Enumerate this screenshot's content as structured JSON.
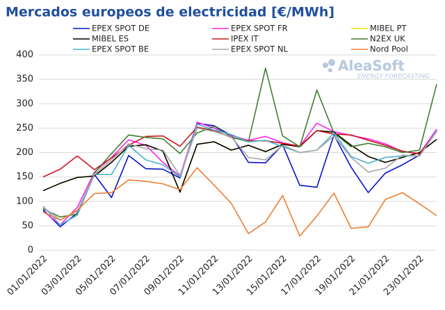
{
  "chart_data": {
    "type": "line",
    "title": "Mercados europeos de electricidad [€/MWh]",
    "watermark": {
      "brand": "AleaSoft",
      "tagline": "ENERGY FORECASTING"
    },
    "categories": [
      "01/01/2022",
      null,
      "03/01/2022",
      null,
      "05/01/2022",
      null,
      "07/01/2022",
      null,
      "09/01/2022",
      null,
      "11/01/2022",
      null,
      "13/01/2022",
      null,
      "15/01/2022",
      null,
      "17/01/2022",
      null,
      "19/01/2022",
      null,
      "21/01/2022",
      null,
      "23/01/2022",
      null
    ],
    "series": [
      {
        "name": "EPEX SPOT DE",
        "color": "#0a14c8",
        "values": [
          83,
          48,
          76,
          155,
          108,
          194,
          167,
          166,
          148,
          260,
          255,
          235,
          180,
          179,
          216,
          133,
          129,
          236,
          170,
          118,
          158,
          175,
          195,
          247
        ]
      },
      {
        "name": "EPEX SPOT FR",
        "color": "#ff22ee",
        "values": [
          80,
          52,
          88,
          160,
          190,
          226,
          215,
          180,
          152,
          262,
          250,
          235,
          225,
          233,
          220,
          213,
          260,
          243,
          235,
          228,
          218,
          202,
          198,
          248
        ]
      },
      {
        "name": "MIBEL PT",
        "color": "#f2e600",
        "values": [
          122,
          137,
          149,
          152,
          180,
          213,
          216,
          203,
          119,
          217,
          222,
          205,
          215,
          202,
          217,
          212,
          245,
          242,
          215,
          192,
          180,
          190,
          200,
          227
        ]
      },
      {
        "name": "MIBEL ES",
        "color": "#000000",
        "values": [
          122,
          137,
          149,
          152,
          180,
          213,
          216,
          203,
          119,
          217,
          222,
          205,
          215,
          202,
          217,
          212,
          245,
          242,
          215,
          192,
          180,
          190,
          200,
          227
        ]
      },
      {
        "name": "IPEX IT",
        "color": "#c8161e",
        "values": [
          150,
          166,
          193,
          165,
          189,
          215,
          233,
          234,
          213,
          252,
          245,
          231,
          224,
          224,
          219,
          213,
          245,
          238,
          236,
          225,
          215,
          203,
          197,
          243
        ]
      },
      {
        "name": "N2EX UK",
        "color": "#3f7f2f",
        "values": [
          85,
          68,
          74,
          158,
          198,
          236,
          231,
          228,
          198,
          240,
          254,
          232,
          222,
          373,
          234,
          212,
          328,
          240,
          212,
          219,
          212,
          200,
          205,
          340
        ]
      },
      {
        "name": "EPEX SPOT BE",
        "color": "#4bb0c8",
        "values": [
          90,
          52,
          72,
          155,
          155,
          215,
          185,
          175,
          150,
          258,
          246,
          237,
          222,
          225,
          212,
          200,
          205,
          240,
          192,
          178,
          190,
          193,
          193,
          245
        ]
      },
      {
        "name": "EPEX SPOT NL",
        "color": "#a6a6a6",
        "values": [
          88,
          62,
          80,
          155,
          185,
          218,
          208,
          205,
          153,
          250,
          243,
          232,
          190,
          185,
          215,
          200,
          205,
          234,
          190,
          160,
          168,
          195,
          193,
          243
        ]
      },
      {
        "name": "Nord Pool",
        "color": "#ed7d31",
        "values": [
          78,
          62,
          82,
          116,
          118,
          144,
          141,
          136,
          124,
          169,
          133,
          96,
          34,
          58,
          112,
          29,
          70,
          117,
          45,
          48,
          104,
          118,
          95,
          71
        ]
      }
    ],
    "ylim": [
      0,
      400
    ],
    "yticks": [
      0,
      50,
      100,
      150,
      200,
      250,
      300,
      350,
      400
    ],
    "grid": true
  }
}
